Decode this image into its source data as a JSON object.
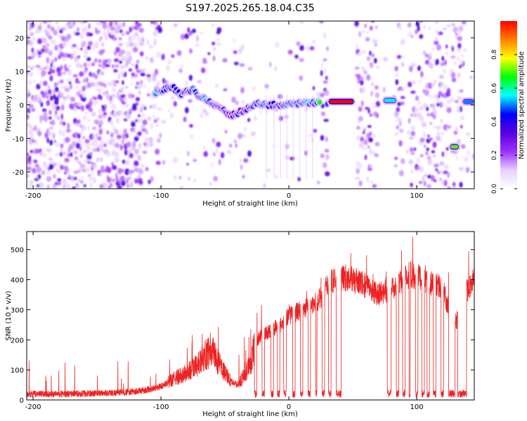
{
  "figure": {
    "title": "S197.2025.265.18.04.C35"
  },
  "chart_data": [
    {
      "type": "heatmap",
      "xlabel": "Height of straight line (km)",
      "ylabel": "Frequency (Hz)",
      "xlim": [
        -205,
        145
      ],
      "ylim": [
        -25,
        25
      ],
      "xticks": [
        -200,
        -100,
        0,
        100
      ],
      "yticks": [
        -20,
        -10,
        0,
        10,
        20
      ],
      "xtick_labels": [
        "-200",
        "-100",
        "0",
        "100"
      ],
      "ytick_labels": [
        "-20",
        "-10",
        "0",
        "10",
        "20"
      ],
      "colorbar": {
        "label": "Normalized spectral amplitude",
        "range": [
          0.0,
          1.0
        ],
        "ticks": [
          0.0,
          0.2,
          0.4,
          0.6,
          0.8
        ],
        "tick_labels": [
          "0.0",
          "0.2",
          "0.4",
          "0.6",
          "0.8"
        ],
        "colors": [
          "#ffffff",
          "#e8d0ff",
          "#9b30ff",
          "#5a00e0",
          "#0000ff",
          "#00ffff",
          "#00ff00",
          "#ffff00",
          "#ff8000",
          "#ff0000"
        ]
      },
      "tone_track": [
        {
          "x": -105,
          "f": 3.5,
          "a": 0.55
        },
        {
          "x": -100,
          "f": 4,
          "a": 0.45
        },
        {
          "x": -95,
          "f": 5,
          "a": 0.4
        },
        {
          "x": -90,
          "f": 5,
          "a": 0.4
        },
        {
          "x": -85,
          "f": 3,
          "a": 0.45
        },
        {
          "x": -80,
          "f": 4,
          "a": 0.4
        },
        {
          "x": -75,
          "f": 4.5,
          "a": 0.45
        },
        {
          "x": -70,
          "f": 2,
          "a": 0.4
        },
        {
          "x": -65,
          "f": 2,
          "a": 0.5
        },
        {
          "x": -60,
          "f": 0.5,
          "a": 0.4
        },
        {
          "x": -55,
          "f": -1,
          "a": 0.35
        },
        {
          "x": -50,
          "f": -2,
          "a": 0.35
        },
        {
          "x": -45,
          "f": -3,
          "a": 0.3
        },
        {
          "x": -40,
          "f": -2.5,
          "a": 0.4
        },
        {
          "x": -35,
          "f": -1.5,
          "a": 0.35
        },
        {
          "x": -30,
          "f": -0.5,
          "a": 0.4
        },
        {
          "x": -25,
          "f": 0.5,
          "a": 0.45
        },
        {
          "x": -20,
          "f": 0,
          "a": 0.45
        },
        {
          "x": -15,
          "f": 0,
          "a": 0.45
        },
        {
          "x": -10,
          "f": 0,
          "a": 0.4
        },
        {
          "x": -5,
          "f": 0,
          "a": 0.45
        },
        {
          "x": 0,
          "f": 0.3,
          "a": 0.45
        },
        {
          "x": 5,
          "f": 0.5,
          "a": 0.5
        },
        {
          "x": 10,
          "f": 0.5,
          "a": 0.45
        },
        {
          "x": 15,
          "f": 0.6,
          "a": 0.5
        },
        {
          "x": 20,
          "f": 0.7,
          "a": 0.5
        },
        {
          "x": 25,
          "f": 1,
          "a": 0.6
        }
      ],
      "bright_bars": [
        {
          "x0": 31,
          "x1": 51,
          "f": 1,
          "a": 1.0
        },
        {
          "x0": 74,
          "x1": 84,
          "f": 1.3,
          "a": 0.55
        },
        {
          "x0": 126,
          "x1": 133,
          "f": -12.5,
          "a": 0.7
        },
        {
          "x0": 136,
          "x1": 145,
          "f": 1,
          "a": 0.5
        }
      ]
    },
    {
      "type": "line",
      "xlabel": "Height of straight line (km)",
      "ylabel": "SNR (10 * v/v)",
      "xlim": [
        -205,
        145
      ],
      "ylim": [
        0,
        560
      ],
      "xticks": [
        -200,
        -100,
        0,
        100
      ],
      "yticks": [
        0,
        100,
        200,
        300,
        400,
        500
      ],
      "xtick_labels": [
        "-200",
        "-100",
        "0",
        "100"
      ],
      "ytick_labels": [
        "0",
        "100",
        "200",
        "300",
        "400",
        "500"
      ],
      "series": [
        {
          "name": "SNR",
          "color": "#ee2222",
          "envelope_x": [
            -205,
            -180,
            -150,
            -130,
            -115,
            -100,
            -90,
            -80,
            -70,
            -65,
            -60,
            -55,
            -50,
            -45,
            -40,
            -35,
            -30,
            -25,
            -20,
            -15,
            -10,
            -5,
            0,
            10,
            20,
            25,
            30,
            35,
            40,
            50,
            60,
            70,
            80,
            90,
            95,
            100,
            110,
            120,
            125,
            130,
            140,
            145
          ],
          "envelope_y": [
            20,
            20,
            22,
            25,
            30,
            45,
            70,
            90,
            120,
            150,
            170,
            120,
            90,
            60,
            50,
            80,
            120,
            200,
            220,
            230,
            240,
            260,
            280,
            300,
            320,
            340,
            380,
            400,
            410,
            400,
            380,
            350,
            370,
            400,
            420,
            410,
            390,
            380,
            300,
            250,
            370,
            400
          ],
          "dropouts": [
            {
              "x0": -27,
              "x1": -25
            },
            {
              "x0": -21,
              "x1": -19
            },
            {
              "x0": -14,
              "x1": -12
            },
            {
              "x0": -9,
              "x1": -7
            },
            {
              "x0": -4,
              "x1": -2
            },
            {
              "x0": 3,
              "x1": 5
            },
            {
              "x0": 9,
              "x1": 11
            },
            {
              "x0": 15,
              "x1": 17
            },
            {
              "x0": 21,
              "x1": 22
            },
            {
              "x0": 26,
              "x1": 28
            },
            {
              "x0": 31,
              "x1": 33
            },
            {
              "x0": 37,
              "x1": 41
            },
            {
              "x0": 77,
              "x1": 80
            },
            {
              "x0": 84,
              "x1": 86
            },
            {
              "x0": 89,
              "x1": 91
            },
            {
              "x0": 94,
              "x1": 95
            },
            {
              "x0": 99,
              "x1": 101
            },
            {
              "x0": 104,
              "x1": 106
            },
            {
              "x0": 108,
              "x1": 110
            },
            {
              "x0": 113,
              "x1": 115
            },
            {
              "x0": 119,
              "x1": 121
            },
            {
              "x0": 125,
              "x1": 130
            },
            {
              "x0": 132,
              "x1": 139
            }
          ],
          "peak_max": 560
        }
      ]
    }
  ]
}
